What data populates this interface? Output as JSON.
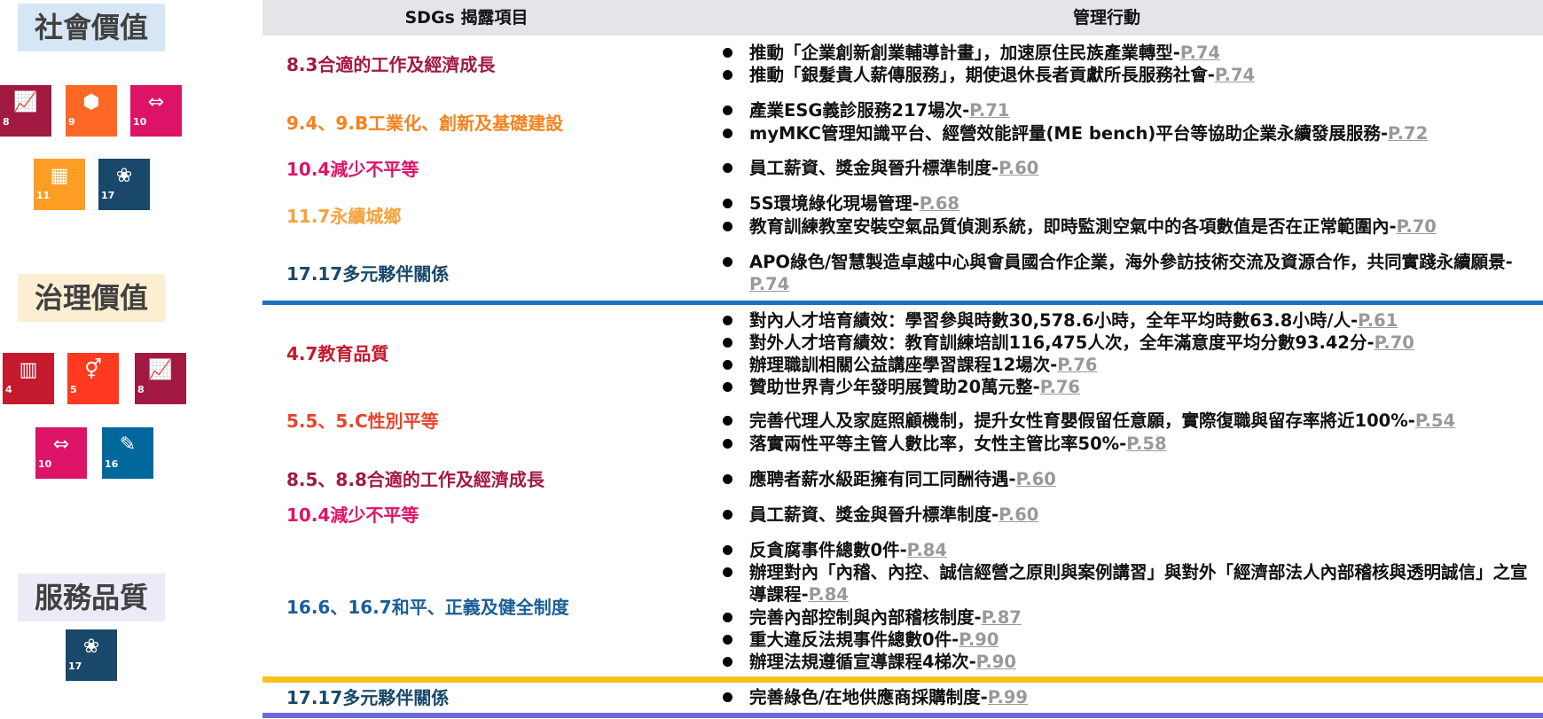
{
  "header": {
    "col1": "SDGs 揭露項目",
    "col2": "管理行動"
  },
  "sections": {
    "social": {
      "title": "社會價值",
      "bg": "#d7e6f4"
    },
    "governance": {
      "title": "治理價值",
      "bg": "#fcefd1"
    },
    "service": {
      "title": "服務品質",
      "bg": "#ebebf7"
    }
  },
  "tiles": [
    {
      "num": "8",
      "icon": "growth-chart-icon",
      "glyph": "📈",
      "color": "#a21942"
    },
    {
      "num": "9",
      "icon": "industry-cubes-icon",
      "glyph": "⬢",
      "color": "#fd6925"
    },
    {
      "num": "10",
      "icon": "reduced-inequality-icon",
      "glyph": "⇔",
      "color": "#dd1367"
    },
    {
      "num": "11",
      "icon": "city-buildings-icon",
      "glyph": "▦",
      "color": "#fd9d24"
    },
    {
      "num": "17",
      "icon": "partnership-flower-icon",
      "glyph": "❀",
      "color": "#19486a"
    },
    {
      "num": "4",
      "icon": "education-book-icon",
      "glyph": "▥",
      "color": "#c5192d"
    },
    {
      "num": "5",
      "icon": "gender-symbol-icon",
      "glyph": "⚥",
      "color": "#ff3a21"
    },
    {
      "num": "8",
      "icon": "growth-chart-icon",
      "glyph": "📈",
      "color": "#a21942"
    },
    {
      "num": "10",
      "icon": "reduced-inequality-icon",
      "glyph": "⇔",
      "color": "#dd1367"
    },
    {
      "num": "16",
      "icon": "peace-dove-icon",
      "glyph": "✎",
      "color": "#00689d"
    },
    {
      "num": "17",
      "icon": "partnership-flower-icon",
      "glyph": "❀",
      "color": "#19486a"
    }
  ],
  "rows": [
    {
      "goal": "8.3合適的工作及經濟成長",
      "color": "#a21942",
      "items": [
        {
          "text": "推動「企業創新創業輔導計畫」，加速原住民族產業轉型-",
          "ref": "P.74"
        },
        {
          "text": "推動「銀髮貴人薪傳服務」，期使退休長者貢獻所長服務社會-",
          "ref": "P.74"
        }
      ]
    },
    {
      "goal": "9.4、9.B工業化、創新及基礎建設",
      "color": "#f5821f",
      "items": [
        {
          "text": "產業ESG義診服務217場次-",
          "ref": "P.71"
        },
        {
          "text": "myMKC管理知識平台、經營效能評量(ME bench)平台等協助企業永續發展服務-",
          "ref": "P.72"
        }
      ]
    },
    {
      "goal": "10.4減少不平等",
      "color": "#dd1367",
      "items": [
        {
          "text": "員工薪資、獎金與晉升標準制度-",
          "ref": "P.60"
        }
      ]
    },
    {
      "goal": "11.7永續城鄉",
      "color": "#f9a13b",
      "items": [
        {
          "text": "5S環境綠化現場管理-",
          "ref": "P.68"
        },
        {
          "text": "教育訓練教室安裝空氣品質偵測系統，即時監測空氣中的各項數值是否在正常範圍內-",
          "ref": "P.70"
        }
      ]
    },
    {
      "goal": "17.17多元夥伴關係",
      "color": "#19486a",
      "items": [
        {
          "text": "APO綠色/智慧製造卓越中心與會員國合作企業，海外參訪技術交流及資源合作，共同實踐永續願景-",
          "ref": "P.74"
        }
      ]
    },
    {
      "goal": "4.7教育品質",
      "color": "#c5192d",
      "items": [
        {
          "text": "對內人才培育績效：學習參與時數30,578.6小時，全年平均時數63.8小時/人-",
          "ref": "P.61"
        },
        {
          "text": "對外人才培育績效：教育訓練培訓116,475人次，全年滿意度平均分數93.42分-",
          "ref": "P.70"
        },
        {
          "text": "辦理職訓相關公益講座學習課程12場次-",
          "ref": "P.76"
        },
        {
          "text": "贊助世界青少年發明展贊助20萬元整-",
          "ref": "P.76"
        }
      ]
    },
    {
      "goal": "5.5、5.C性別平等",
      "color": "#e8442c",
      "items": [
        {
          "text": "完善代理人及家庭照顧機制，提升女性育嬰假留任意願，實際復職與留存率將近100%-",
          "ref": "P.54"
        },
        {
          "text": "落實兩性平等主管人數比率，女性主管比率50%-",
          "ref": "P.58"
        }
      ]
    },
    {
      "goal": "8.5、8.8合適的工作及經濟成長",
      "color": "#a21942",
      "items": [
        {
          "text": "應聘者薪水級距擁有同工同酬待遇-",
          "ref": "P.60"
        }
      ]
    },
    {
      "goal": "10.4減少不平等",
      "color": "#dd1367",
      "items": [
        {
          "text": "員工薪資、獎金與晉升標準制度-",
          "ref": "P.60"
        }
      ]
    },
    {
      "goal": "16.6、16.7和平、正義及健全制度",
      "color": "#1b5e96",
      "items": [
        {
          "text": "反貪腐事件總數0件-",
          "ref": "P.84"
        },
        {
          "text": "辦理對內「內稽、內控、誠信經營之原則與案例講習」與對外「經濟部法人內部稽核與透明誠信」之宣導課程-",
          "ref": "P.84"
        },
        {
          "text": "完善內部控制與內部稽核制度-",
          "ref": "P.87"
        },
        {
          "text": "重大違反法規事件總數0件-",
          "ref": "P.90"
        },
        {
          "text": "辦理法規遵循宣導課程4梯次-",
          "ref": "P.90"
        }
      ]
    },
    {
      "goal": "17.17多元夥伴關係",
      "color": "#19486a",
      "items": [
        {
          "text": "完善綠色/在地供應商採購制度-",
          "ref": "P.99"
        }
      ]
    }
  ],
  "rules": {
    "social_end": "#1f6fba",
    "governance_end": "#ffc21c",
    "service_end": "#6b6bdc"
  }
}
